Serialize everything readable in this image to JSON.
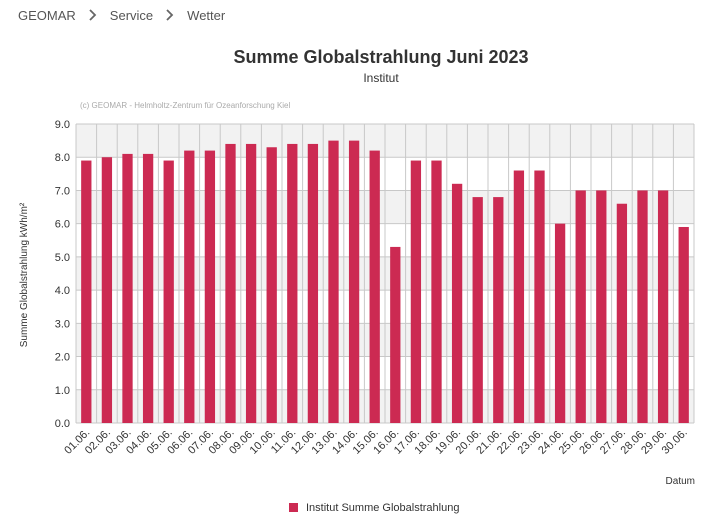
{
  "breadcrumb": {
    "items": [
      "GEOMAR",
      "Service",
      "Wetter"
    ]
  },
  "icons": {
    "separator": "chevron-right-icon"
  },
  "colors": {
    "bar": "#cc2a52",
    "band": "#f2f2f2",
    "grid": "#c8c8c8",
    "text": "#333333"
  },
  "chart_data": {
    "type": "bar",
    "title": "Summe Globalstrahlung Juni 2023",
    "subtitle": "Institut",
    "credit": "(c) GEOMAR - Helmholtz-Zentrum für Ozeanforschung Kiel",
    "xlabel": "Datum",
    "ylabel": "Summe Globalstrahlung kWh/m²",
    "ylim": [
      0,
      9
    ],
    "yticks": [
      "0.0",
      "1.0",
      "2.0",
      "3.0",
      "4.0",
      "5.0",
      "6.0",
      "7.0",
      "8.0",
      "9.0"
    ],
    "grid": true,
    "legend_position": "bottom-center",
    "categories": [
      "01.06.",
      "02.06.",
      "03.06.",
      "04.06.",
      "05.06.",
      "06.06.",
      "07.06.",
      "08.06.",
      "09.06.",
      "10.06.",
      "11.06.",
      "12.06.",
      "13.06.",
      "14.06.",
      "15.06.",
      "16.06.",
      "17.06.",
      "18.06.",
      "19.06.",
      "20.06.",
      "21.06.",
      "22.06.",
      "23.06.",
      "24.06.",
      "25.06.",
      "26.06.",
      "27.06.",
      "28.06.",
      "29.06.",
      "30.06."
    ],
    "series": [
      {
        "name": "Institut Summe Globalstrahlung",
        "values": [
          7.9,
          8.0,
          8.1,
          8.1,
          7.9,
          8.2,
          8.2,
          8.4,
          8.4,
          8.3,
          8.4,
          8.4,
          8.5,
          8.5,
          8.2,
          5.3,
          7.9,
          7.9,
          7.2,
          6.8,
          6.8,
          7.6,
          7.6,
          6.0,
          7.0,
          7.0,
          6.6,
          7.0,
          7.0,
          5.9
        ]
      }
    ]
  }
}
